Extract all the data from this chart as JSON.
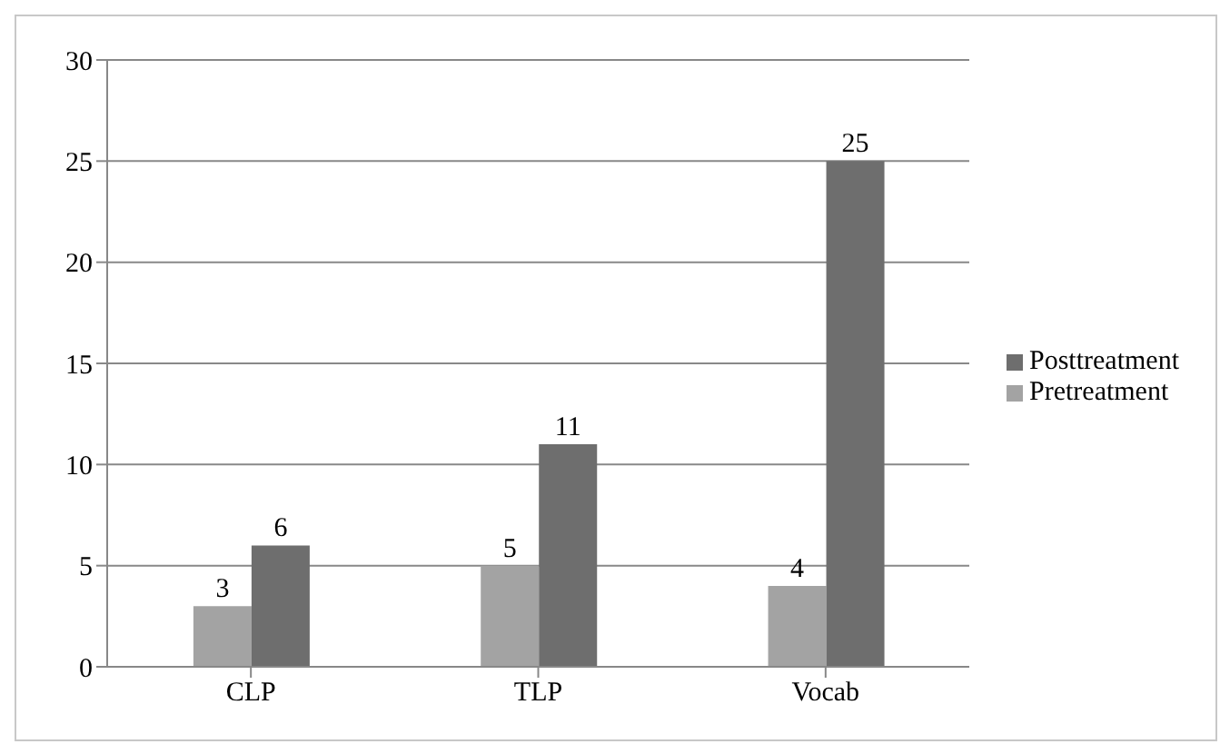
{
  "chart_data": {
    "type": "bar",
    "categories": [
      "CLP",
      "TLP",
      "Vocab"
    ],
    "series": [
      {
        "name": "Pretreatment",
        "color": "#a3a3a3",
        "values": [
          3,
          5,
          4
        ]
      },
      {
        "name": "Posttreatment",
        "color": "#6e6e6e",
        "values": [
          6,
          11,
          25
        ]
      }
    ],
    "ylim": [
      0,
      30
    ],
    "yticks": [
      0,
      5,
      10,
      15,
      20,
      25,
      30
    ],
    "grid": "y",
    "legend": "right",
    "data_labels": true
  }
}
